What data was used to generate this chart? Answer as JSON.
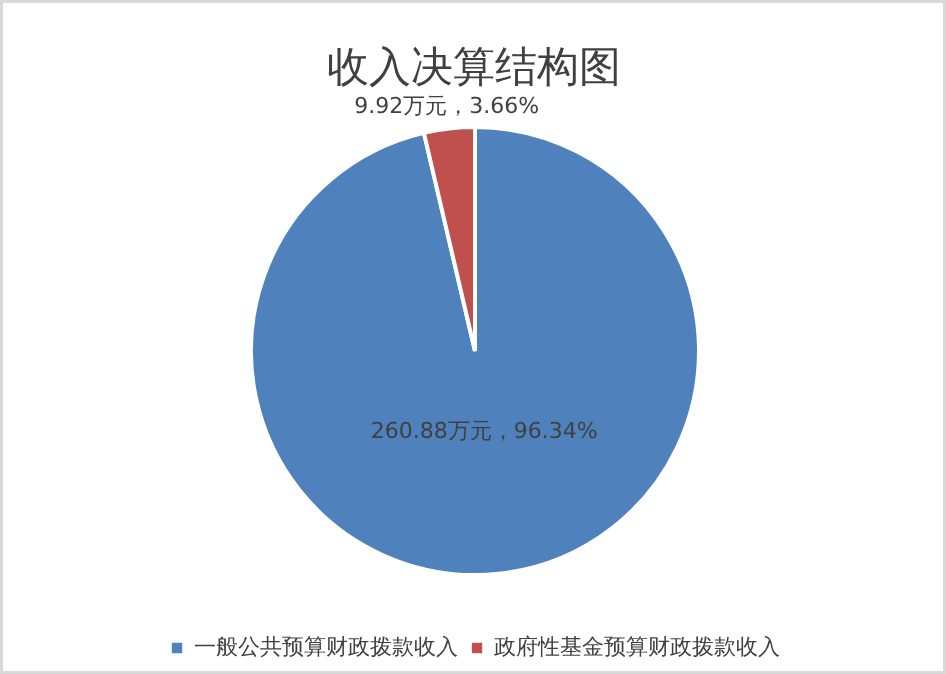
{
  "chart_data": {
    "type": "pie",
    "title": "收入决算结构图",
    "categories": [
      "一般公共预算财政拨款收入",
      "政府性基金预算财政拨款收入"
    ],
    "values": [
      260.88,
      9.92
    ],
    "colors": [
      "#4f81bd",
      "#c0504d"
    ],
    "value_labels": [
      "260.88万元，96.34%",
      "9.92万元，3.66%"
    ],
    "legend": "bottom"
  }
}
